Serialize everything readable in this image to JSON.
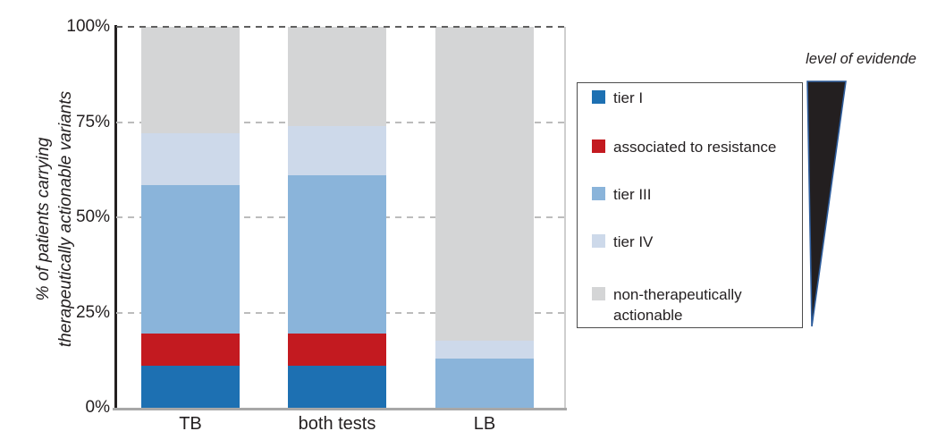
{
  "figure_title": "",
  "chart_data": {
    "type": "bar",
    "stacked": true,
    "categories": [
      "TB",
      "both tests",
      "LB"
    ],
    "series": [
      {
        "name": "tier I",
        "color": "#1d70b2",
        "values": [
          11,
          11,
          0
        ]
      },
      {
        "name": "associated to resistance",
        "color": "#c31a20",
        "values": [
          8.5,
          8.5,
          0
        ]
      },
      {
        "name": "tier III",
        "color": "#8ab4da",
        "values": [
          39,
          41.5,
          13
        ]
      },
      {
        "name": "tier IV",
        "color": "#cdd9ea",
        "values": [
          13.5,
          13,
          4.5
        ]
      },
      {
        "name": "non-therapeutically actionable",
        "color": "#d4d5d6",
        "values": [
          28,
          26,
          82.5
        ]
      }
    ],
    "ylabel_line1": "% of patients carrying",
    "ylabel_line2": "therapeutically actionable variants",
    "ylim": [
      0,
      100
    ],
    "yticks": [
      {
        "value": 0,
        "label": "0%"
      },
      {
        "value": 25,
        "label": "25%"
      },
      {
        "value": 50,
        "label": "50%"
      },
      {
        "value": 75,
        "label": "75%"
      },
      {
        "value": 100,
        "label": "100%"
      }
    ],
    "grid": "dashed horizontal gridlines at 25/50/75, dark dashed line at 100",
    "legend_position": "right"
  },
  "legend": {
    "items": [
      {
        "label": "tier I",
        "color": "#1d70b2"
      },
      {
        "label": "associated to resistance",
        "color": "#c31a20"
      },
      {
        "label": "tier III",
        "color": "#8ab4da"
      },
      {
        "label": "tier IV",
        "color": "#cdd9ea"
      },
      {
        "label": "non-therapeutically\nactionable",
        "color": "#d4d5d6"
      }
    ]
  },
  "evidence_annotation": {
    "label": "level of evidende",
    "triangle_fill": "#231f20",
    "triangle_stroke": "#2e5d9c"
  },
  "colors": {
    "axis": "#231f20",
    "gridline": "#bcbcbc",
    "top_gridline": "#606060",
    "bottom_axis": "#a8a8a8",
    "legend_border": "#4d4d4d"
  }
}
